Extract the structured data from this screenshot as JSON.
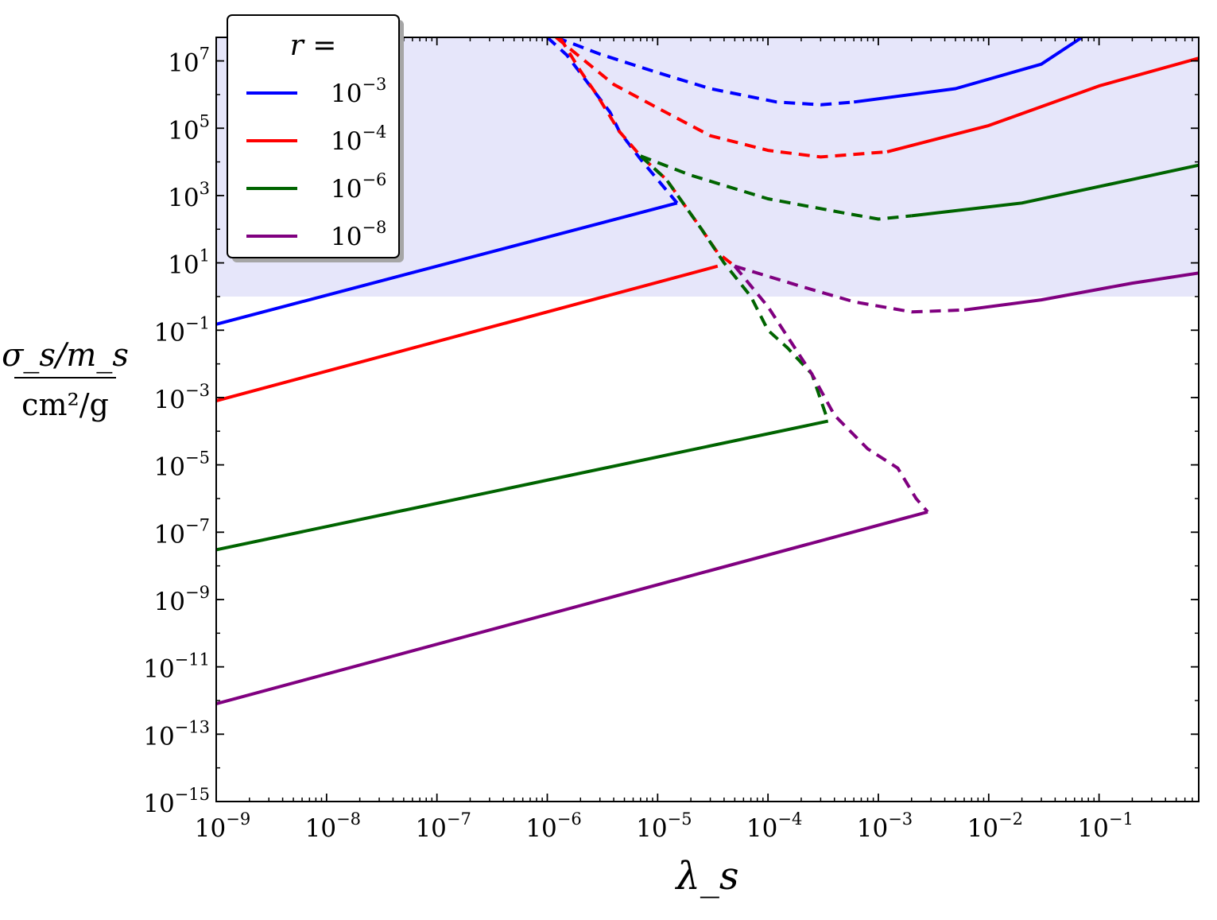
{
  "chart_data": {
    "type": "line",
    "title": "",
    "xlabel": "λ_s",
    "ylabel_numerator": "σ_s/m_s",
    "ylabel_denominator": "cm²/g",
    "xscale": "log",
    "yscale": "log",
    "xlim": [
      1e-09,
      0.8
    ],
    "ylim": [
      1e-15,
      50000000.0
    ],
    "grid": false,
    "x_ticks": [
      {
        "value": 1e-09,
        "base": "10",
        "exp": "−9"
      },
      {
        "value": 1e-08,
        "base": "10",
        "exp": "−8"
      },
      {
        "value": 1e-07,
        "base": "10",
        "exp": "−7"
      },
      {
        "value": 1e-06,
        "base": "10",
        "exp": "−6"
      },
      {
        "value": 1e-05,
        "base": "10",
        "exp": "−5"
      },
      {
        "value": 0.0001,
        "base": "10",
        "exp": "−4"
      },
      {
        "value": 0.001,
        "base": "10",
        "exp": "−3"
      },
      {
        "value": 0.01,
        "base": "10",
        "exp": "−2"
      },
      {
        "value": 0.1,
        "base": "10",
        "exp": "−1"
      }
    ],
    "y_ticks": [
      {
        "value": 1e-15,
        "base": "10",
        "exp": "−15"
      },
      {
        "value": 1e-13,
        "base": "10",
        "exp": "−13"
      },
      {
        "value": 1e-11,
        "base": "10",
        "exp": "−11"
      },
      {
        "value": 1e-09,
        "base": "10",
        "exp": "−9"
      },
      {
        "value": 1e-07,
        "base": "10",
        "exp": "−7"
      },
      {
        "value": 1e-05,
        "base": "10",
        "exp": "−5"
      },
      {
        "value": 0.001,
        "base": "10",
        "exp": "−3"
      },
      {
        "value": 0.1,
        "base": "10",
        "exp": "−1"
      },
      {
        "value": 10,
        "base": "10",
        "exp": "1"
      },
      {
        "value": 1000,
        "base": "10",
        "exp": "3"
      },
      {
        "value": 100000,
        "base": "10",
        "exp": "5"
      },
      {
        "value": 10000000,
        "base": "10",
        "exp": "7"
      }
    ],
    "shaded_region": {
      "y_min": 1,
      "y_max": 50000000.0,
      "color": "#e6e6fa"
    },
    "legend": {
      "title": "r =",
      "placement": "top-left",
      "entries": [
        {
          "base": "10",
          "exp": "−3",
          "color": "#0000ff"
        },
        {
          "base": "10",
          "exp": "−4",
          "color": "#ff0000"
        },
        {
          "base": "10",
          "exp": "−6",
          "color": "#006400"
        },
        {
          "base": "10",
          "exp": "−8",
          "color": "#800080"
        }
      ]
    },
    "series": [
      {
        "color": "#0000ff",
        "solid_lower": [
          [
            1e-09,
            0.15
          ],
          [
            1.5e-05,
            600
          ]
        ],
        "dashed_boundary": [
          [
            1e-06,
            50000000.0
          ],
          [
            1.5e-06,
            15000000.0
          ],
          [
            2.8e-06,
            1000000.0
          ],
          [
            3.7e-06,
            300000.0
          ],
          [
            4.5e-06,
            80000.0
          ],
          [
            7e-06,
            12000.0
          ],
          [
            1.5e-05,
            600
          ]
        ],
        "dashed_upper": [
          [
            1.2e-06,
            50000000.0
          ],
          [
            3e-06,
            16000000.0
          ],
          [
            1e-05,
            4500000.0
          ],
          [
            3e-05,
            1500000.0
          ],
          [
            0.00012,
            600000.0
          ],
          [
            0.0003,
            500000.0
          ],
          [
            0.0006,
            600000.0
          ]
        ],
        "solid_upper": [
          [
            0.0006,
            600000.0
          ],
          [
            0.005,
            1500000.0
          ],
          [
            0.03,
            8000000.0
          ],
          [
            0.07,
            50000000.0
          ]
        ]
      },
      {
        "color": "#ff0000",
        "solid_lower": [
          [
            1e-09,
            0.0008
          ],
          [
            3.5e-05,
            8
          ]
        ],
        "dashed_boundary": [
          [
            1.3e-06,
            50000000.0
          ],
          [
            2e-06,
            5000000.0
          ],
          [
            2.8e-06,
            1000000.0
          ],
          [
            4.5e-06,
            80000.0
          ],
          [
            7e-06,
            15000.0
          ],
          [
            1.2e-05,
            3000.0
          ],
          [
            2.5e-05,
            100
          ],
          [
            3.5e-05,
            20
          ],
          [
            5e-05,
            8
          ]
        ],
        "dashed_upper": [
          [
            1.2e-06,
            50000000.0
          ],
          [
            4e-06,
            2000000.0
          ],
          [
            1e-05,
            400000.0
          ],
          [
            3e-05,
            60000.0
          ],
          [
            0.0001,
            22000.0
          ],
          [
            0.0003,
            14000.0
          ],
          [
            0.0012,
            20000.0
          ]
        ],
        "solid_upper": [
          [
            0.0012,
            20000.0
          ],
          [
            0.01,
            120000.0
          ],
          [
            0.1,
            1800000.0
          ],
          [
            0.8,
            12000000.0
          ]
        ]
      },
      {
        "color": "#006400",
        "solid_lower": [
          [
            1e-09,
            3e-08
          ],
          [
            0.00035,
            0.0002
          ]
        ],
        "dashed_boundary": [
          [
            7e-06,
            15000.0
          ],
          [
            1.2e-05,
            3000.0
          ],
          [
            2.5e-05,
            100
          ],
          [
            4e-05,
            10
          ],
          [
            7e-05,
            1
          ],
          [
            0.0001,
            0.1
          ],
          [
            0.00015,
            0.03
          ],
          [
            0.00025,
            0.005
          ],
          [
            0.00035,
            0.0002
          ]
        ],
        "dashed_upper": [
          [
            7e-06,
            15000.0
          ],
          [
            2e-05,
            4000.0
          ],
          [
            0.0001,
            800
          ],
          [
            0.0005,
            300
          ],
          [
            0.001,
            200
          ],
          [
            0.002,
            250
          ]
        ],
        "solid_upper": [
          [
            0.002,
            250
          ],
          [
            0.02,
            600
          ],
          [
            0.2,
            3000.0
          ],
          [
            0.8,
            8000.0
          ]
        ]
      },
      {
        "color": "#800080",
        "solid_lower": [
          [
            1e-09,
            8e-13
          ],
          [
            0.0028,
            4e-07
          ]
        ],
        "dashed_boundary": [
          [
            5e-05,
            8
          ],
          [
            0.0001,
            0.5
          ],
          [
            0.00025,
            0.005
          ],
          [
            0.0004,
            0.0003
          ],
          [
            0.0008,
            3e-05
          ],
          [
            0.0015,
            8e-06
          ],
          [
            0.0022,
            1e-06
          ],
          [
            0.0028,
            4e-07
          ]
        ],
        "dashed_upper": [
          [
            5e-05,
            8
          ],
          [
            0.0002,
            2
          ],
          [
            0.0006,
            0.7
          ],
          [
            0.002,
            0.35
          ],
          [
            0.006,
            0.4
          ]
        ],
        "solid_upper": [
          [
            0.006,
            0.4
          ],
          [
            0.03,
            0.8
          ],
          [
            0.2,
            2.5
          ],
          [
            0.8,
            5
          ]
        ]
      }
    ]
  }
}
